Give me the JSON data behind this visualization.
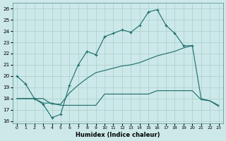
{
  "xlabel": "Humidex (Indice chaleur)",
  "xlim": [
    -0.5,
    23.5
  ],
  "ylim": [
    15.8,
    26.5
  ],
  "yticks": [
    16,
    17,
    18,
    19,
    20,
    21,
    22,
    23,
    24,
    25,
    26
  ],
  "xticks": [
    0,
    1,
    2,
    3,
    4,
    5,
    6,
    7,
    8,
    9,
    10,
    11,
    12,
    13,
    14,
    15,
    16,
    17,
    18,
    19,
    20,
    21,
    22,
    23
  ],
  "bg_color": "#cce8e8",
  "line_color": "#1b6b6b",
  "grid_color": "#aacfcf",
  "line1_x": [
    0,
    1,
    2,
    3,
    4,
    5,
    6,
    7,
    8,
    9,
    10,
    11,
    12,
    13,
    14,
    15,
    16,
    17,
    18,
    19,
    20
  ],
  "line1_y": [
    20.0,
    19.3,
    18.0,
    17.5,
    16.3,
    16.6,
    19.2,
    21.0,
    22.2,
    21.9,
    23.5,
    23.8,
    24.1,
    23.9,
    24.5,
    25.7,
    25.9,
    24.5,
    23.8,
    22.7,
    22.7
  ],
  "line2_x": [
    0,
    2,
    3,
    4,
    5,
    6,
    7,
    8,
    9,
    10,
    11,
    12,
    13,
    14,
    15,
    16,
    17,
    18,
    19,
    20,
    21,
    22,
    23
  ],
  "line2_y": [
    18.0,
    18.0,
    17.6,
    17.6,
    17.4,
    17.4,
    17.4,
    17.4,
    17.4,
    18.4,
    18.4,
    18.4,
    18.4,
    18.4,
    18.4,
    18.7,
    18.7,
    18.7,
    18.7,
    18.7,
    17.9,
    17.8,
    17.4
  ],
  "line3_x": [
    0,
    2,
    3,
    4,
    5,
    6,
    7,
    8,
    9,
    10,
    11,
    12,
    13,
    14,
    15,
    16,
    17,
    18,
    19,
    20,
    21,
    22,
    23
  ],
  "line3_y": [
    18.0,
    18.0,
    18.0,
    17.5,
    17.5,
    18.5,
    19.2,
    19.8,
    20.3,
    20.5,
    20.7,
    20.9,
    21.0,
    21.2,
    21.5,
    21.8,
    22.0,
    22.2,
    22.5,
    22.7,
    18.0,
    17.8,
    17.3
  ]
}
